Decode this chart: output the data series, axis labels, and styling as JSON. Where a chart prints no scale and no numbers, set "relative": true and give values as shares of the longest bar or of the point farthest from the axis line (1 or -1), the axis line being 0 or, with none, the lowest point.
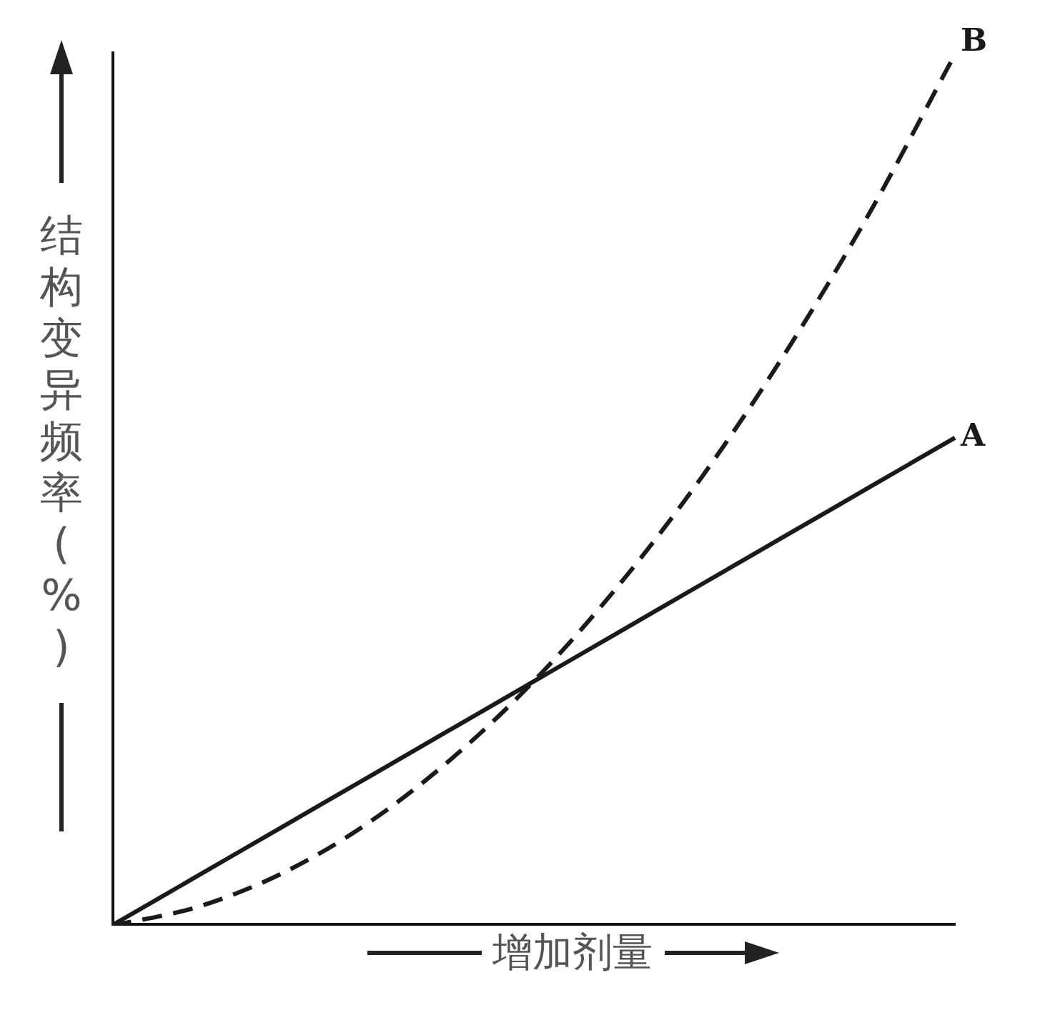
{
  "chart_data": {
    "type": "line",
    "relative": true,
    "xlabel": "增加剂量",
    "ylabel": "结构变异频率(%)",
    "categories": [
      null,
      null,
      null,
      null,
      null,
      null,
      null,
      null,
      null,
      null,
      null
    ],
    "series": [
      {
        "name": "A",
        "color": "#1a1a1a",
        "line_style": "solid",
        "values": [
          0,
          0.056,
          0.112,
          0.168,
          0.224,
          0.28,
          0.336,
          0.392,
          0.448,
          0.504,
          0.56
        ]
      },
      {
        "name": "B",
        "color": "#1a1a1a",
        "line_style": "dashed",
        "values": [
          0,
          0.021,
          0.059,
          0.115,
          0.189,
          0.28,
          0.389,
          0.515,
          0.659,
          0.82,
          1
        ]
      }
    ],
    "marker": "none",
    "grid": false,
    "legend": false
  }
}
